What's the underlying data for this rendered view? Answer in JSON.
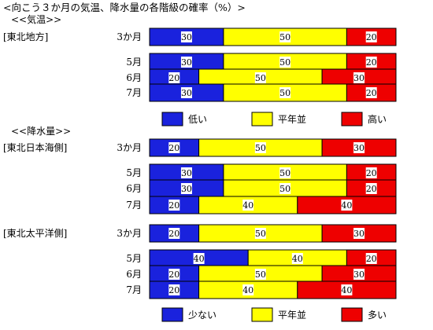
{
  "title": "<向こう３か月の気温、降水量の各階級の確率（%）>",
  "sections": {
    "temp": "<<気温>>",
    "precip": "<<降水量>>"
  },
  "regions": {
    "tohoku": "[東北地方]",
    "tohoku_sea": "[東北日本海側]",
    "tohoku_pacific": "[東北太平洋側]"
  },
  "legend_temp": [
    "低い",
    "平年並",
    "高い"
  ],
  "legend_precip": [
    "少ない",
    "平年並",
    "多い"
  ],
  "colors": {
    "low": "#1a22dd",
    "normal": "#ffff00",
    "high": "#ee0000"
  },
  "chart_data": [
    {
      "type": "bar",
      "section": "気温",
      "region": "東北地方",
      "stacked": true,
      "categories": [
        "3か月",
        "5月",
        "6月",
        "7月"
      ],
      "series": [
        {
          "name": "低い",
          "values": [
            30,
            30,
            20,
            30
          ]
        },
        {
          "name": "平年並",
          "values": [
            50,
            50,
            50,
            50
          ]
        },
        {
          "name": "高い",
          "values": [
            20,
            20,
            30,
            20
          ]
        }
      ]
    },
    {
      "type": "bar",
      "section": "降水量",
      "region": "東北日本海側",
      "stacked": true,
      "categories": [
        "3か月",
        "5月",
        "6月",
        "7月"
      ],
      "series": [
        {
          "name": "少ない",
          "values": [
            20,
            30,
            30,
            20
          ]
        },
        {
          "name": "平年並",
          "values": [
            50,
            50,
            50,
            40
          ]
        },
        {
          "name": "多い",
          "values": [
            30,
            20,
            20,
            40
          ]
        }
      ]
    },
    {
      "type": "bar",
      "section": "降水量",
      "region": "東北太平洋側",
      "stacked": true,
      "categories": [
        "3か月",
        "5月",
        "6月",
        "7月"
      ],
      "series": [
        {
          "name": "少ない",
          "values": [
            20,
            40,
            20,
            20
          ]
        },
        {
          "name": "平年並",
          "values": [
            50,
            40,
            50,
            40
          ]
        },
        {
          "name": "多い",
          "values": [
            30,
            20,
            30,
            40
          ]
        }
      ]
    }
  ]
}
